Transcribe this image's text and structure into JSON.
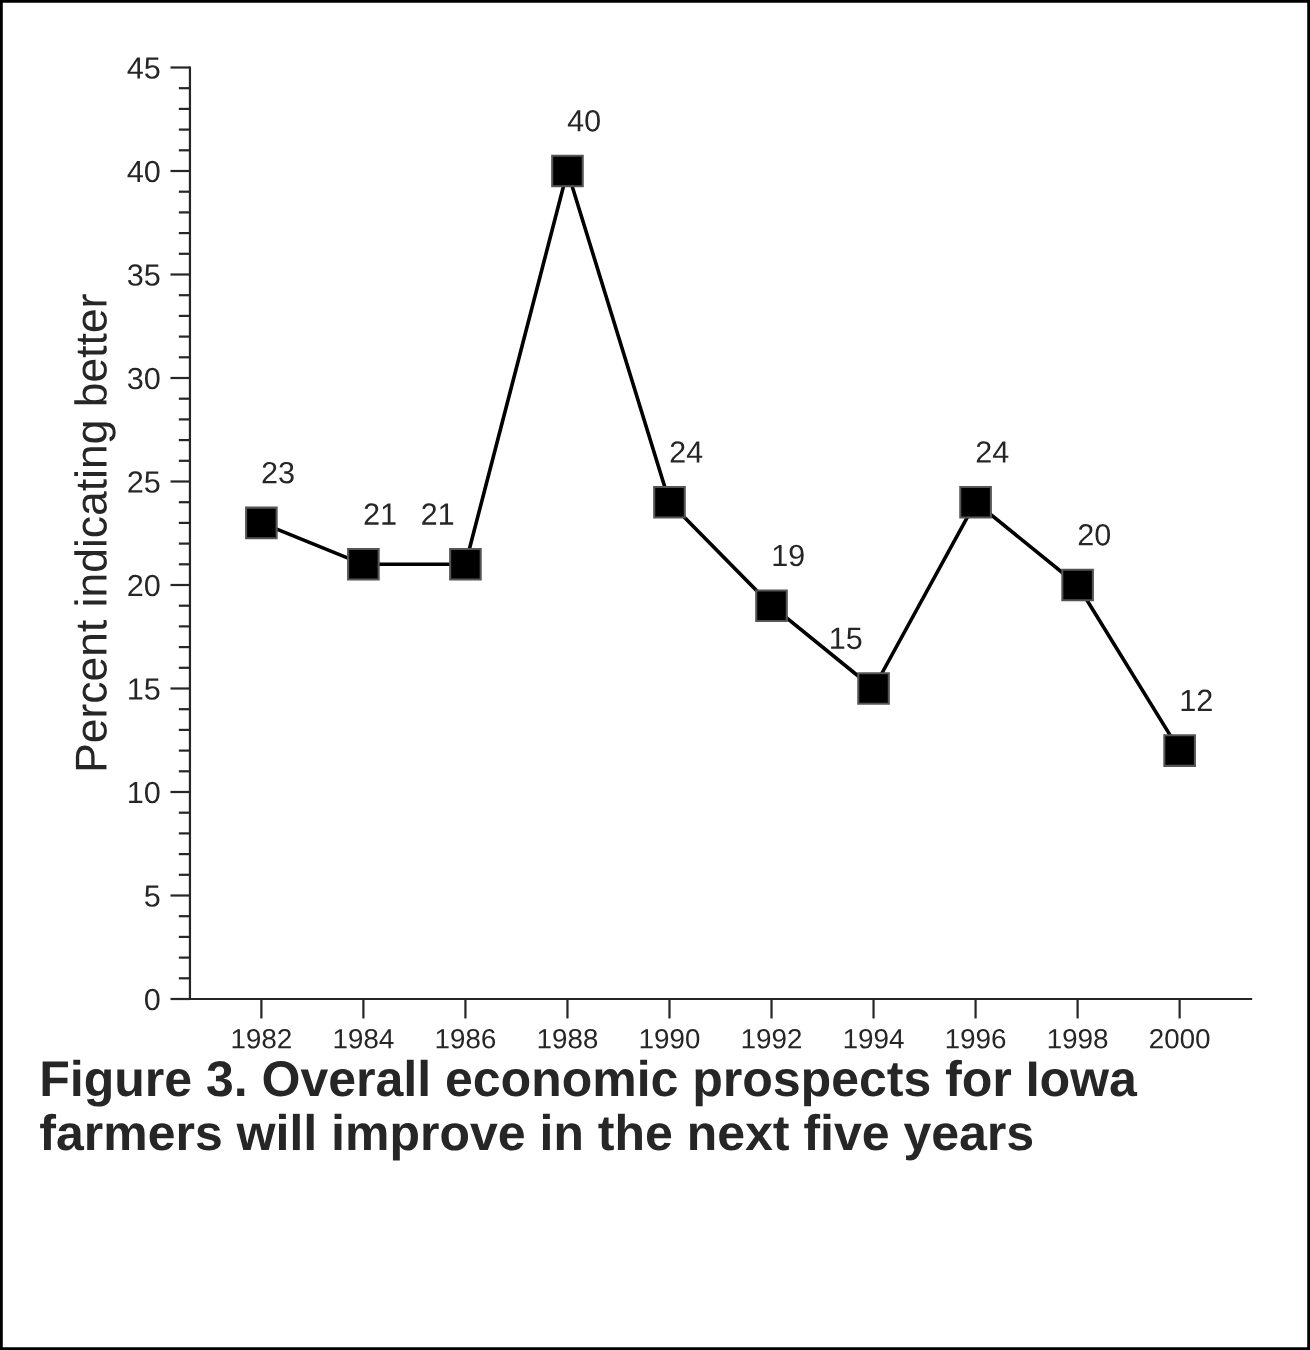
{
  "chart_data": {
    "type": "line",
    "title": "Figure 3. Overall economic prospects for Iowa farmers will improve in the next five years",
    "ylabel": "Percent indicating better",
    "categories": [
      "1982",
      "1984",
      "1986",
      "1988",
      "1990",
      "1992",
      "1994",
      "1996",
      "1998",
      "2000"
    ],
    "series": [
      {
        "color": "#000000",
        "values": [
          23,
          21,
          21,
          40,
          24,
          19,
          15,
          24,
          20,
          12
        ]
      }
    ],
    "ylim": [
      0,
      45
    ],
    "yticks": [
      0,
      5,
      10,
      15,
      20,
      25,
      30,
      35,
      40,
      45
    ],
    "marker": "square",
    "line_style": "solid",
    "data_labels": true,
    "grid": false,
    "legend": false
  }
}
